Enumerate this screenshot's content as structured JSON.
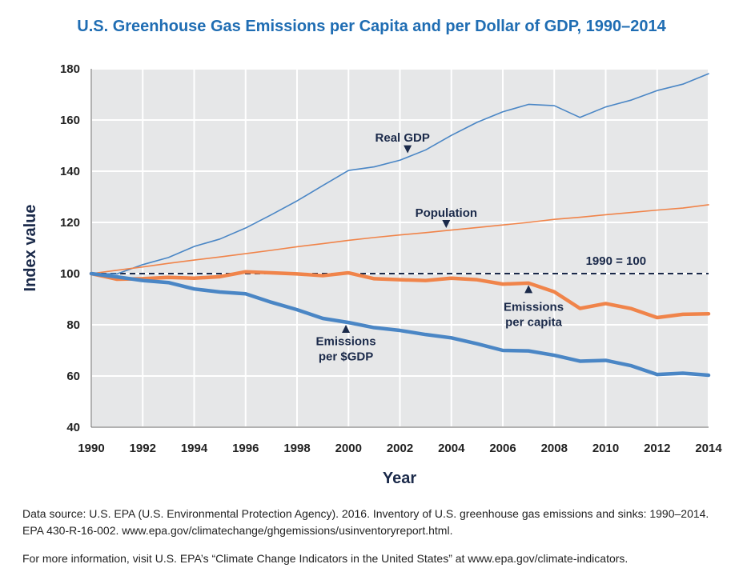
{
  "title": "U.S. Greenhouse Gas Emissions per Capita and per Dollar of GDP, 1990–2014",
  "source_note": "Data source: U.S. EPA (U.S. Environmental Protection Agency). 2016. Inventory of U.S. greenhouse gas emissions and sinks: 1990–2014. EPA 430-R-16-002. www.epa.gov/climatechange/ghgemissions/usinventoryreport.html.",
  "more_info_note": "For more information, visit U.S. EPA’s “Climate Change Indicators in the United States” at www.epa.gov/climate-indicators.",
  "chart_data": {
    "type": "line",
    "xlabel": "Year",
    "ylabel": "Index value",
    "xlim": [
      1990,
      2014
    ],
    "ylim": [
      40,
      180
    ],
    "x_ticks": [
      1990,
      1992,
      1994,
      1996,
      1998,
      2000,
      2002,
      2004,
      2006,
      2008,
      2010,
      2012,
      2014
    ],
    "y_ticks": [
      40,
      60,
      80,
      100,
      120,
      140,
      160,
      180
    ],
    "grid": true,
    "x": [
      1990,
      1991,
      1992,
      1993,
      1994,
      1995,
      1996,
      1997,
      1998,
      1999,
      2000,
      2001,
      2002,
      2003,
      2004,
      2005,
      2006,
      2007,
      2008,
      2009,
      2010,
      2011,
      2012,
      2013,
      2014
    ],
    "series": [
      {
        "name": "Real GDP",
        "color": "#4a86c5",
        "width": 1.6,
        "values": [
          100,
          99.9,
          103.5,
          106.3,
          110.6,
          113.5,
          117.8,
          123.0,
          128.4,
          134.4,
          140.3,
          141.7,
          144.3,
          148.3,
          154.0,
          159.1,
          163.2,
          166.1,
          165.6,
          161.0,
          165.1,
          167.8,
          171.5,
          174.0,
          178.1
        ]
      },
      {
        "name": "Population",
        "color": "#f0844a",
        "width": 1.6,
        "values": [
          100,
          101.3,
          102.6,
          104.0,
          105.3,
          106.5,
          107.8,
          109.1,
          110.5,
          111.7,
          113.0,
          114.1,
          115.1,
          116.0,
          117.0,
          118.0,
          119.0,
          120.0,
          121.2,
          122.0,
          123.0,
          123.9,
          124.8,
          125.6,
          126.9
        ]
      },
      {
        "name": "Emissions per capita",
        "color": "#f0844a",
        "width": 4.5,
        "values": [
          100,
          97.8,
          98.0,
          98.5,
          98.2,
          98.8,
          100.7,
          100.3,
          99.9,
          99.2,
          100.3,
          98.0,
          97.6,
          97.3,
          98.2,
          97.6,
          95.9,
          96.3,
          92.9,
          86.4,
          88.3,
          86.3,
          82.8,
          84.1,
          84.3
        ]
      },
      {
        "name": "Emissions per $GDP",
        "color": "#4a86c5",
        "width": 4.5,
        "values": [
          100,
          98.7,
          97.3,
          96.5,
          94.0,
          92.8,
          92.1,
          88.8,
          85.9,
          82.5,
          80.9,
          78.9,
          77.8,
          76.2,
          74.9,
          72.6,
          70.0,
          69.8,
          68.1,
          65.8,
          66.1,
          64.0,
          60.6,
          61.1,
          60.3
        ]
      }
    ],
    "reference_line": {
      "value": 100,
      "label": "1990 = 100",
      "color": "#1b2a4a"
    },
    "annotations": [
      {
        "lines": [
          "Real GDP"
        ],
        "x": 2002.1,
        "y": 151.5,
        "arrow": "down",
        "arrow_x": 2002.3,
        "arrow_y": 147
      },
      {
        "lines": [
          "Population"
        ],
        "x": 2003.8,
        "y": 122.2,
        "arrow": "down",
        "arrow_x": 2003.8,
        "arrow_y": 117.8
      },
      {
        "lines": [
          "Emissions",
          "per capita"
        ],
        "x": 2007.2,
        "y": 85.5,
        "arrow": "up",
        "arrow_x": 2007.0,
        "arrow_y": 95.5
      },
      {
        "lines": [
          "Emissions",
          "per $GDP"
        ],
        "x": 1999.9,
        "y": 72.0,
        "arrow": "up",
        "arrow_x": 1999.9,
        "arrow_y": 80.0
      },
      {
        "lines": [
          "1990 = 100"
        ],
        "x": 2010.4,
        "y": 103.5,
        "arrow": "none"
      }
    ]
  }
}
